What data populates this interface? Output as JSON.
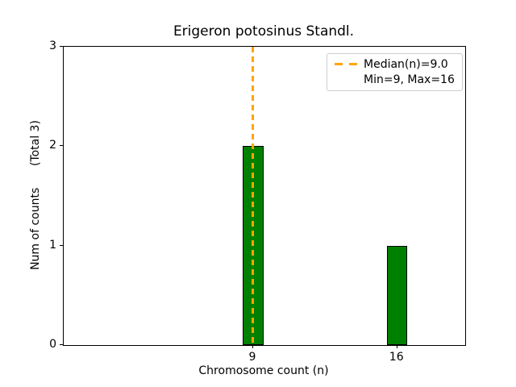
{
  "figure": {
    "title": "Erigeron potosinus Standl.",
    "xlabel": "Chromosome count (n)",
    "ylabel": "Num of counts      (Total 3)"
  },
  "legend": {
    "items": [
      {
        "marker": "dashed-line",
        "label": "Median(n)=9.0"
      },
      {
        "marker": "none",
        "label": "Min=9, Max=16"
      }
    ]
  },
  "colors": {
    "bar_fill": "#008000",
    "bar_edge": "#000000",
    "median_line": "#FFA500",
    "legend_border": "#cccccc",
    "text": "#000000"
  },
  "chart_data": {
    "type": "bar",
    "title": "Erigeron potosinus Standl.",
    "xlabel": "Chromosome count (n)",
    "ylabel": "Num of counts      (Total 3)",
    "x": [
      9,
      16
    ],
    "values": [
      2,
      1
    ],
    "bar_width": 1.0,
    "xticks": [
      9,
      16
    ],
    "yticks": [
      0,
      1,
      2,
      3
    ],
    "xlim": [
      -0.2,
      19.3
    ],
    "ylim": [
      0,
      3
    ],
    "median": 9.0,
    "min": 9,
    "max": 16,
    "total_counts": 3,
    "grid": false,
    "legend_position": "upper right",
    "median_line_style": "dashed"
  }
}
